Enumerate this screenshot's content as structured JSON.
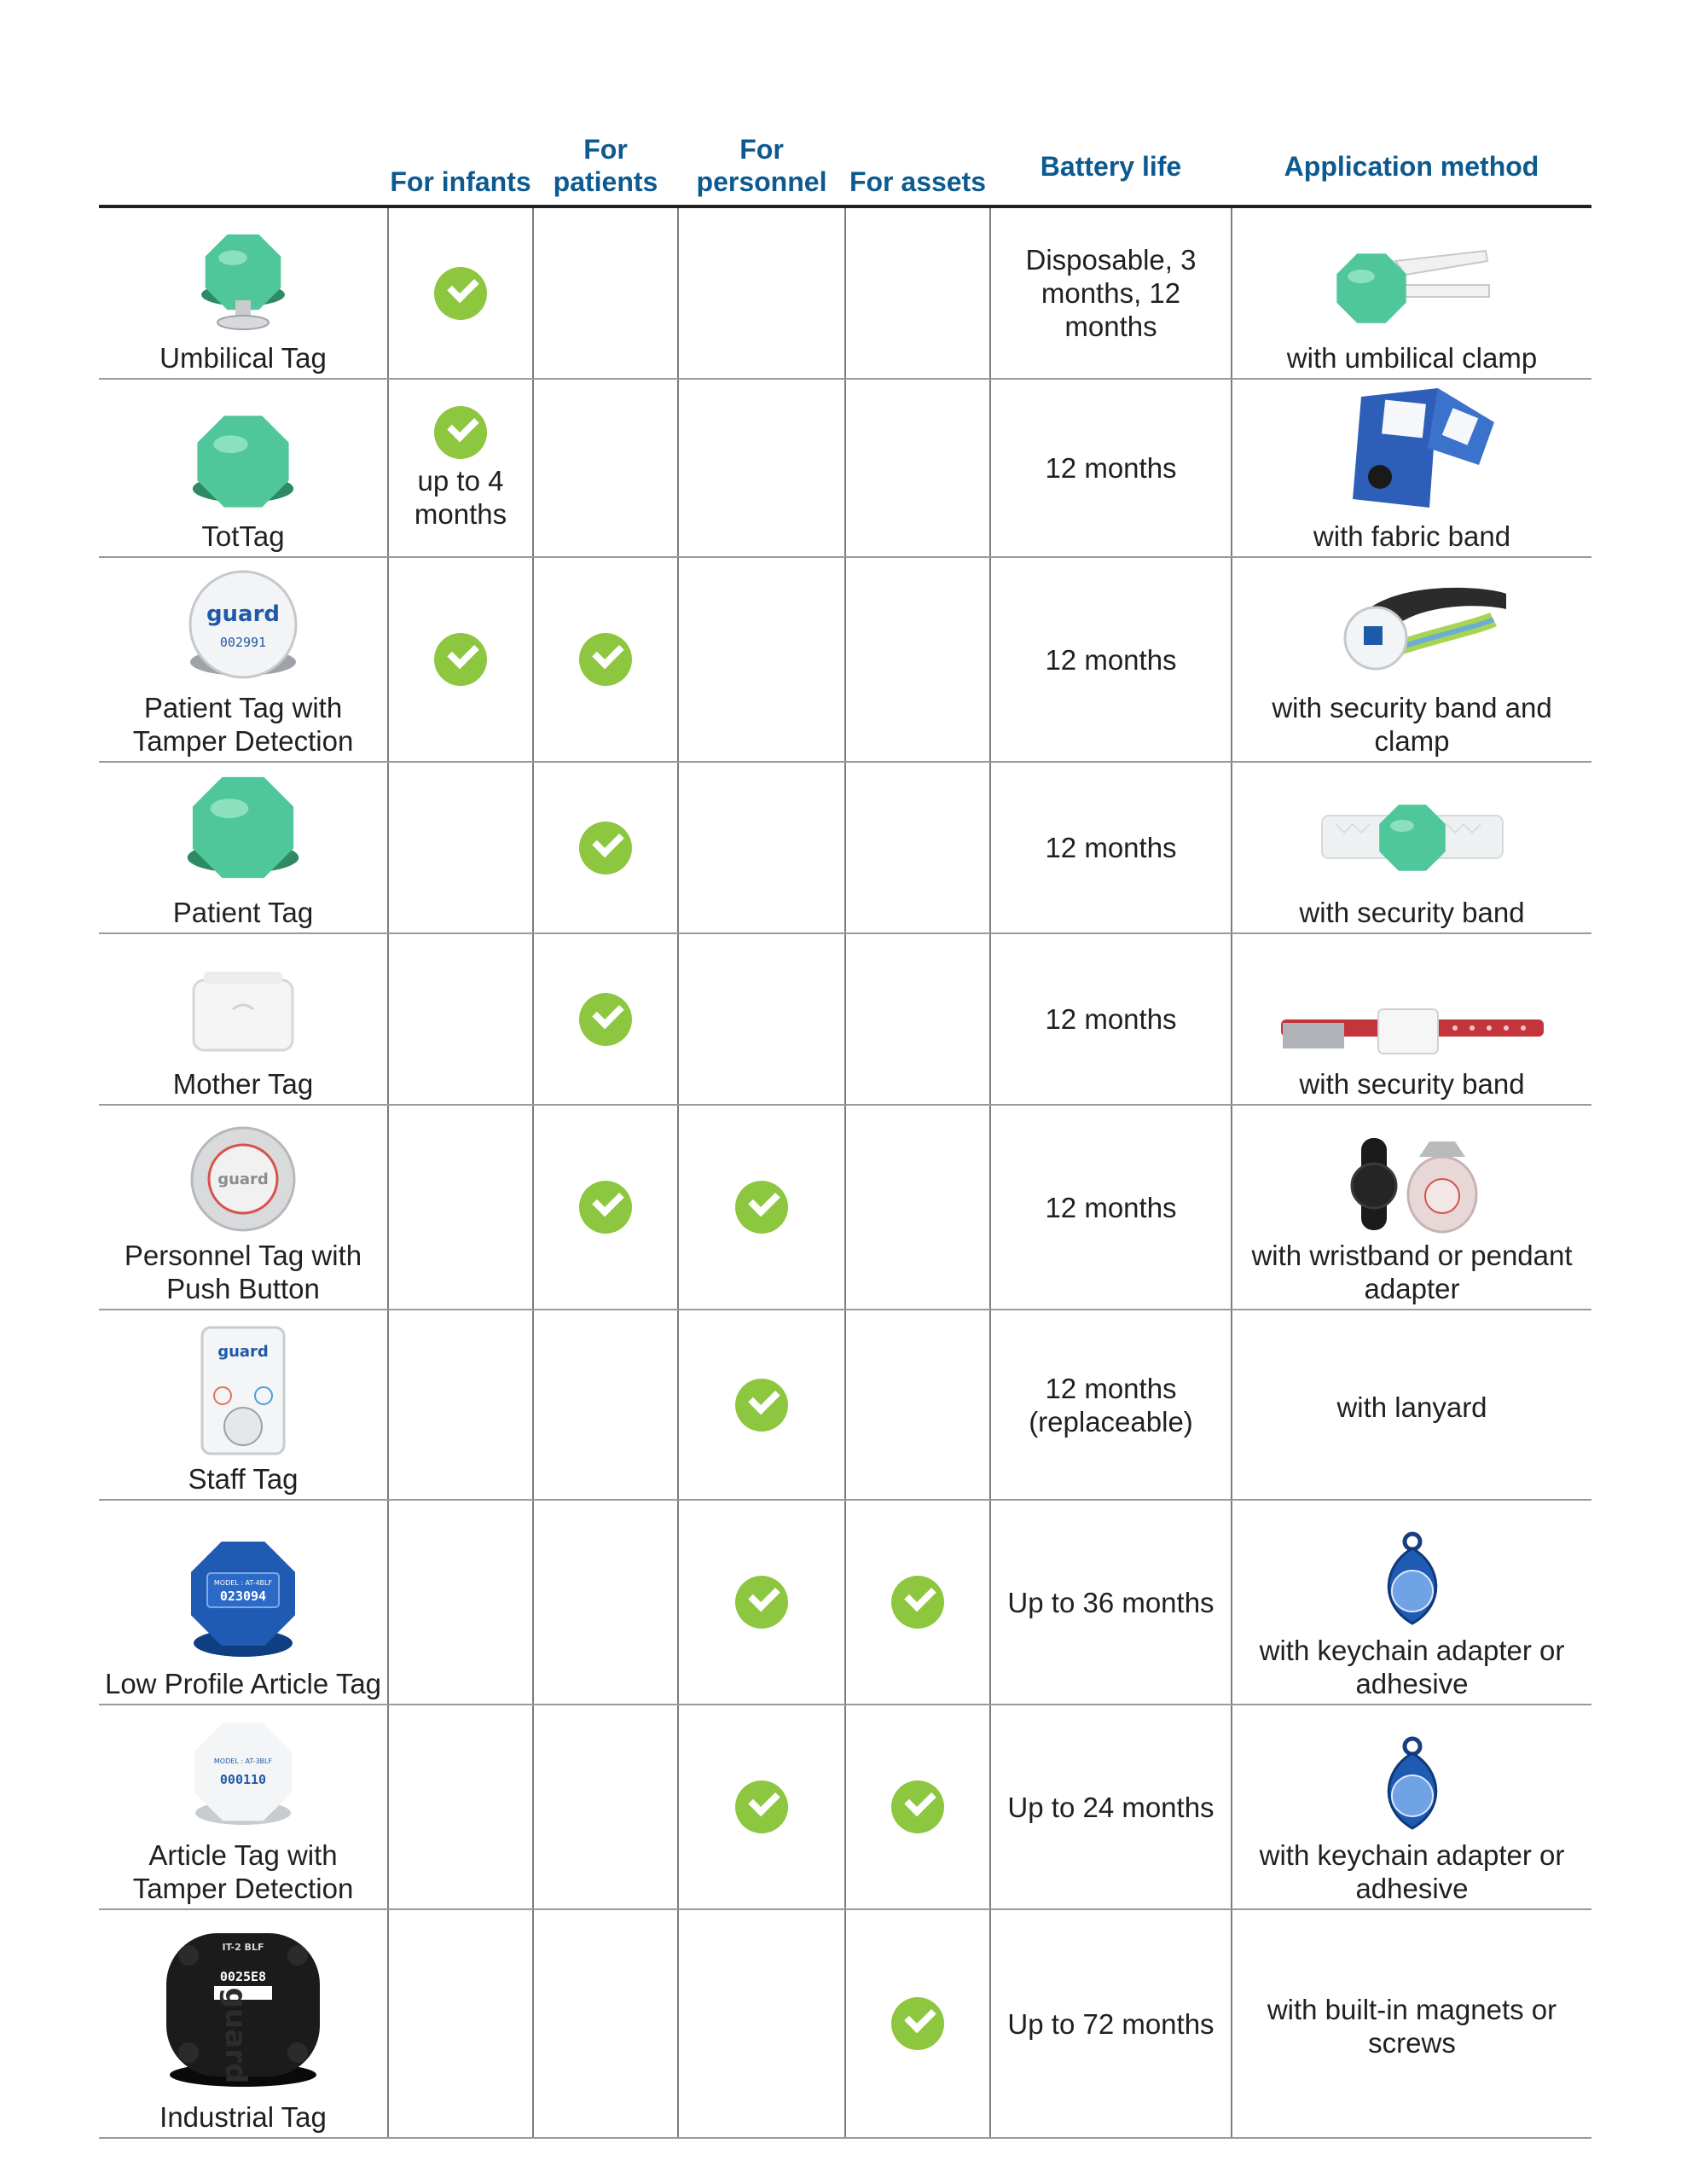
{
  "headers": {
    "for_infants": "For infants",
    "for_patients": "For patients",
    "for_personnel": "For personnel",
    "for_assets": "For assets",
    "battery_life": "Battery life",
    "application_method": "Application method"
  },
  "colors": {
    "header_blue": "#0c5a8f",
    "check_green": "#8dc63f",
    "tag_green": "#4fc79a"
  },
  "rows": [
    {
      "name": "Umbilical Tag",
      "icon": "umbilical-tag-image",
      "infants": true,
      "patients": false,
      "personnel": false,
      "assets": false,
      "infants_note": "",
      "battery": "Disposable, 3 months, 12 months",
      "application": "with umbilical clamp",
      "application_icon": "umbilical-clamp-image"
    },
    {
      "name": "TotTag",
      "icon": "tottag-image",
      "infants": true,
      "patients": false,
      "personnel": false,
      "assets": false,
      "infants_note": "up to 4 months",
      "battery": "12 months",
      "application": "with fabric band",
      "application_icon": "fabric-band-image"
    },
    {
      "name": "Patient Tag with Tamper Detection",
      "icon": "patient-tag-tamper-image",
      "infants": true,
      "patients": true,
      "personnel": false,
      "assets": false,
      "infants_note": "",
      "battery": "12 months",
      "application": "with security band and clamp",
      "application_icon": "security-band-clamp-image"
    },
    {
      "name": "Patient Tag",
      "icon": "patient-tag-image",
      "infants": false,
      "patients": true,
      "personnel": false,
      "assets": false,
      "infants_note": "",
      "battery": "12 months",
      "application": "with security band",
      "application_icon": "security-band-image"
    },
    {
      "name": "Mother Tag",
      "icon": "mother-tag-image",
      "infants": false,
      "patients": true,
      "personnel": false,
      "assets": false,
      "infants_note": "",
      "battery": "12 months",
      "application": "with security band",
      "application_icon": "red-security-band-image"
    },
    {
      "name": "Personnel Tag with Push Button",
      "icon": "personnel-tag-image",
      "infants": false,
      "patients": true,
      "personnel": true,
      "assets": false,
      "infants_note": "",
      "battery": "12 months",
      "application": "with wristband or pendant adapter",
      "application_icon": "wristband-pendant-image"
    },
    {
      "name": "Staff Tag",
      "icon": "staff-tag-image",
      "infants": false,
      "patients": false,
      "personnel": true,
      "assets": false,
      "infants_note": "",
      "battery": "12 months (replaceable)",
      "application": "with lanyard",
      "application_icon": ""
    },
    {
      "name": "Low Profile Article Tag",
      "icon": "low-profile-article-tag-image",
      "infants": false,
      "patients": false,
      "personnel": true,
      "assets": true,
      "infants_note": "",
      "battery": "Up to 36 months",
      "application": "with keychain adapter or adhesive",
      "application_icon": "keychain-adapter-image",
      "label_text": "023094",
      "model_text": "MODEL : AT-4BLF"
    },
    {
      "name": "Article Tag with Tamper Detection",
      "icon": "article-tag-tamper-image",
      "infants": false,
      "patients": false,
      "personnel": true,
      "assets": true,
      "infants_note": "",
      "battery": "Up to 24 months",
      "application": "with keychain adapter or adhesive",
      "application_icon": "keychain-adapter-image",
      "label_text": "000110",
      "model_text": "MODEL : AT-3BLF"
    },
    {
      "name": "Industrial Tag",
      "icon": "industrial-tag-image",
      "infants": false,
      "patients": false,
      "personnel": false,
      "assets": true,
      "infants_note": "",
      "battery": "Up to 72 months",
      "application": "with built-in magnets or  screws",
      "application_icon": "",
      "label_text": "0025E8",
      "model_text": "IT-2 BLF"
    }
  ],
  "device_labels": {
    "guard_logo": "guard",
    "patient_tag_serial": "002991"
  }
}
